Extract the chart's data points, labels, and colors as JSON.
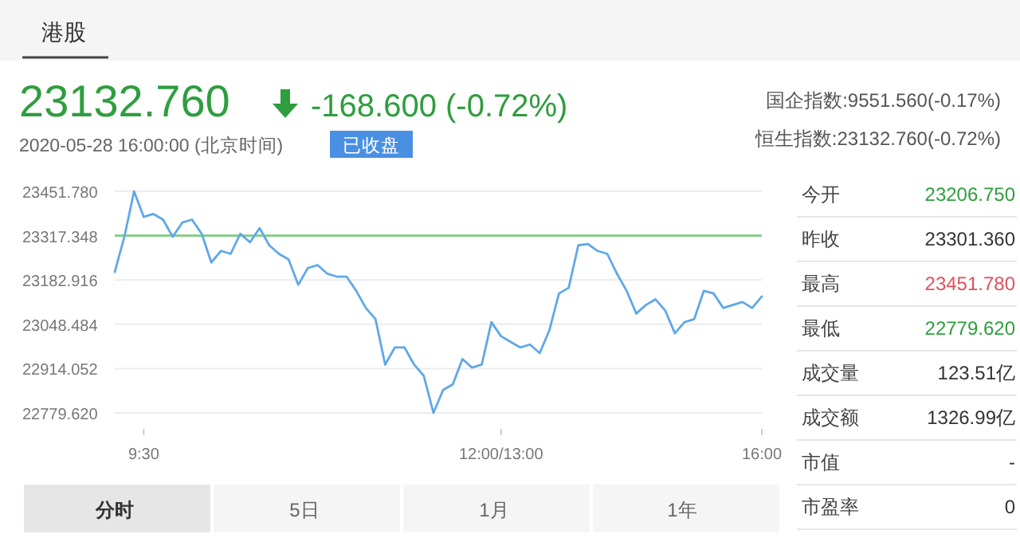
{
  "chart_data": [
    {
      "type": "line",
      "annotations": [
        "港股",
        "23132.760",
        "-168.600 (-0.72%)",
        "2020-05-28 16:00:00  (北京时间)",
        "已收盘",
        "国企指数:9551.560(-0.17%)",
        "恒生指数:23132.760(-0.72%)",
        "分时",
        "5日",
        "1月",
        "1年"
      ],
      "categories": [
        null,
        null,
        null,
        "9:30",
        null,
        null,
        null,
        null,
        null,
        null,
        null,
        null,
        null,
        null,
        null,
        null,
        null,
        null,
        null,
        null,
        null,
        null,
        null,
        null,
        null,
        null,
        null,
        null,
        null,
        null,
        null,
        null,
        null,
        null,
        null,
        null,
        null,
        null,
        null,
        null,
        "12:00/13:00",
        null,
        null,
        null,
        null,
        null,
        null,
        null,
        null,
        null,
        null,
        null,
        null,
        null,
        null,
        null,
        null,
        null,
        null,
        null,
        null,
        null,
        null,
        null,
        null,
        null,
        null,
        "16:00"
      ],
      "series": [
        {
          "color": "#5fa8e8",
          "values": [
            23207,
            23314,
            23451.78,
            23374,
            23383,
            23366,
            23314,
            23357,
            23366,
            23323,
            23236,
            23271,
            23262,
            23323,
            23297,
            23340,
            23288,
            23262,
            23245,
            23168,
            23219,
            23228,
            23202,
            23193,
            23193,
            23150,
            23098,
            23064,
            22926,
            22978,
            22978,
            22926,
            22892,
            22779.62,
            22849,
            22866,
            22943,
            22917,
            22926,
            23055,
            23012,
            22995,
            22978,
            22987,
            22961,
            23030,
            23142,
            23159,
            23288,
            23292,
            23271,
            23262,
            23202,
            23150,
            23081,
            23107,
            23124,
            23090,
            23021,
            23055,
            23064,
            23150,
            23142,
            23098,
            23107,
            23116,
            23098,
            23132.76
          ]
        }
      ],
      "ylim": [
        22779.62,
        23451.78
      ],
      "yticks": [
        {
          "value": 22779.62,
          "label": "22779.620"
        },
        22914.052,
        23048.484,
        23182.916,
        23317.348,
        {
          "value": 23451.78,
          "label": "23451.780"
        }
      ],
      "ref_lines": [
        {
          "axis": "y",
          "value": 23317.348,
          "color": "#7ccf7c"
        }
      ],
      "grid": "y",
      "marker": "none",
      "line_style": "solid"
    },
    {
      "type": "other",
      "categories": [
        "今开",
        "昨收",
        "最高",
        "最低",
        "成交量",
        "成交额",
        "市值",
        "市盈率"
      ],
      "value_labels": [
        "23206.750",
        "23301.360",
        "23451.780",
        "22779.620",
        "123.51亿",
        "1326.99亿",
        "-",
        "0"
      ],
      "colors": [
        "#2e9e3e",
        "#333333",
        "#e0505a",
        "#2e9e3e",
        "#333333",
        "#333333",
        "#333333",
        "#333333"
      ]
    }
  ]
}
